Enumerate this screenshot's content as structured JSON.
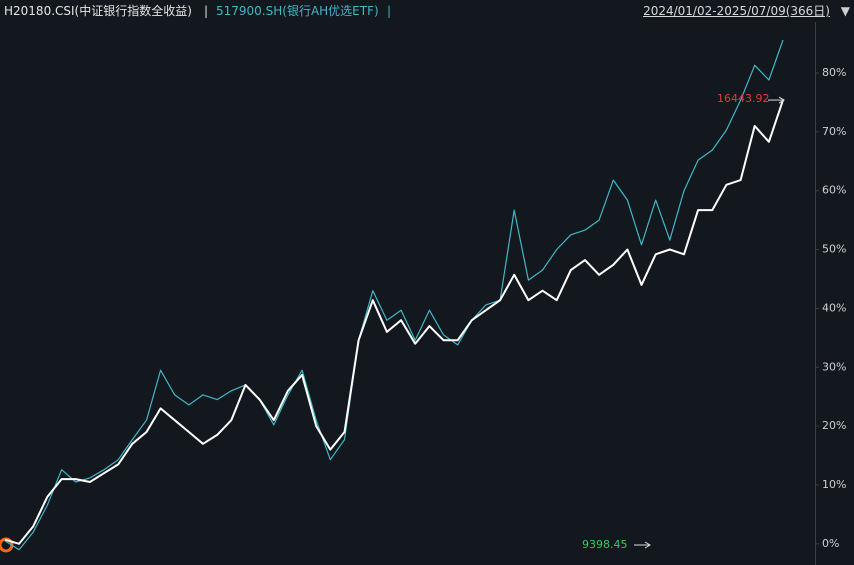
{
  "chart_data": {
    "type": "line",
    "header": {
      "index_name": "H20180.CSI(中证银行指数全收益)",
      "separator": "|",
      "etf_name": "517900.SH(银行AH优选ETF)",
      "date_range": "2024/01/02-2025/07/09(366日)"
    },
    "categories": [
      null,
      null,
      null,
      null,
      null,
      null,
      null,
      null,
      null,
      null,
      null,
      null,
      null,
      null,
      null,
      null,
      null,
      null,
      null,
      null,
      null,
      null,
      null,
      null,
      null,
      null,
      null,
      null,
      null,
      null,
      null,
      null,
      null,
      null,
      null,
      null,
      null,
      null,
      null,
      null,
      null,
      null,
      null,
      null,
      null,
      null,
      null,
      null,
      null,
      null,
      null,
      null,
      null,
      null,
      null,
      null
    ],
    "series": [
      {
        "name": "H20180.CSI(中证银行指数全收益)",
        "color": "#ffffff",
        "values": [
          0.7,
          0,
          3,
          8,
          11,
          11,
          10.5,
          12,
          13.5,
          17,
          19,
          23,
          21,
          19,
          17,
          18.5,
          21,
          27,
          24.5,
          21,
          26,
          28.7,
          20,
          16,
          19,
          34.6,
          41.4,
          36,
          38,
          34,
          37,
          34.6,
          34.6,
          38,
          39.7,
          41.4,
          45.7,
          41.4,
          43,
          41.4,
          46.5,
          48.2,
          45.7,
          47.4,
          50,
          44,
          49.2,
          50,
          49.2,
          56.7,
          56.7,
          61,
          61.8,
          71,
          68.3,
          75.4
        ]
      },
      {
        "name": "517900.SH(银行AH优选ETF)",
        "color": "#3fb8c8",
        "values": [
          0.5,
          -1,
          2,
          6.6,
          12.6,
          10.5,
          11.2,
          12.6,
          14.3,
          17.7,
          21,
          29.5,
          25.3,
          23.6,
          25.3,
          24.5,
          26,
          27,
          24.5,
          20.2,
          25.3,
          29.5,
          21,
          14.3,
          17.7,
          34.6,
          43,
          38,
          39.7,
          34.6,
          39.7,
          35.5,
          33.8,
          38,
          40.6,
          41.4,
          56.7,
          44.8,
          46.5,
          50,
          52.5,
          53.3,
          55,
          61.8,
          58.4,
          50.8,
          58.4,
          51.6,
          60,
          65.2,
          66.9,
          70.3,
          75.4,
          81.3,
          78.8,
          85.6
        ]
      }
    ],
    "ylim": [
      -3.6,
      92.4
    ],
    "yticks": [
      {
        "value": 0,
        "label": "0%"
      },
      {
        "value": 10,
        "label": "10%"
      },
      {
        "value": 20,
        "label": "20%"
      },
      {
        "value": 30,
        "label": "30%"
      },
      {
        "value": 40,
        "label": "40%"
      },
      {
        "value": 50,
        "label": "50%"
      },
      {
        "value": 60,
        "label": "60%"
      },
      {
        "value": 70,
        "label": "70%"
      },
      {
        "value": 80,
        "label": "80%"
      }
    ],
    "grid": false,
    "annotations": [
      {
        "text": "16443.92",
        "color": "#e03a3a"
      },
      {
        "text": "9398.45",
        "color": "#3cc85a"
      }
    ]
  }
}
